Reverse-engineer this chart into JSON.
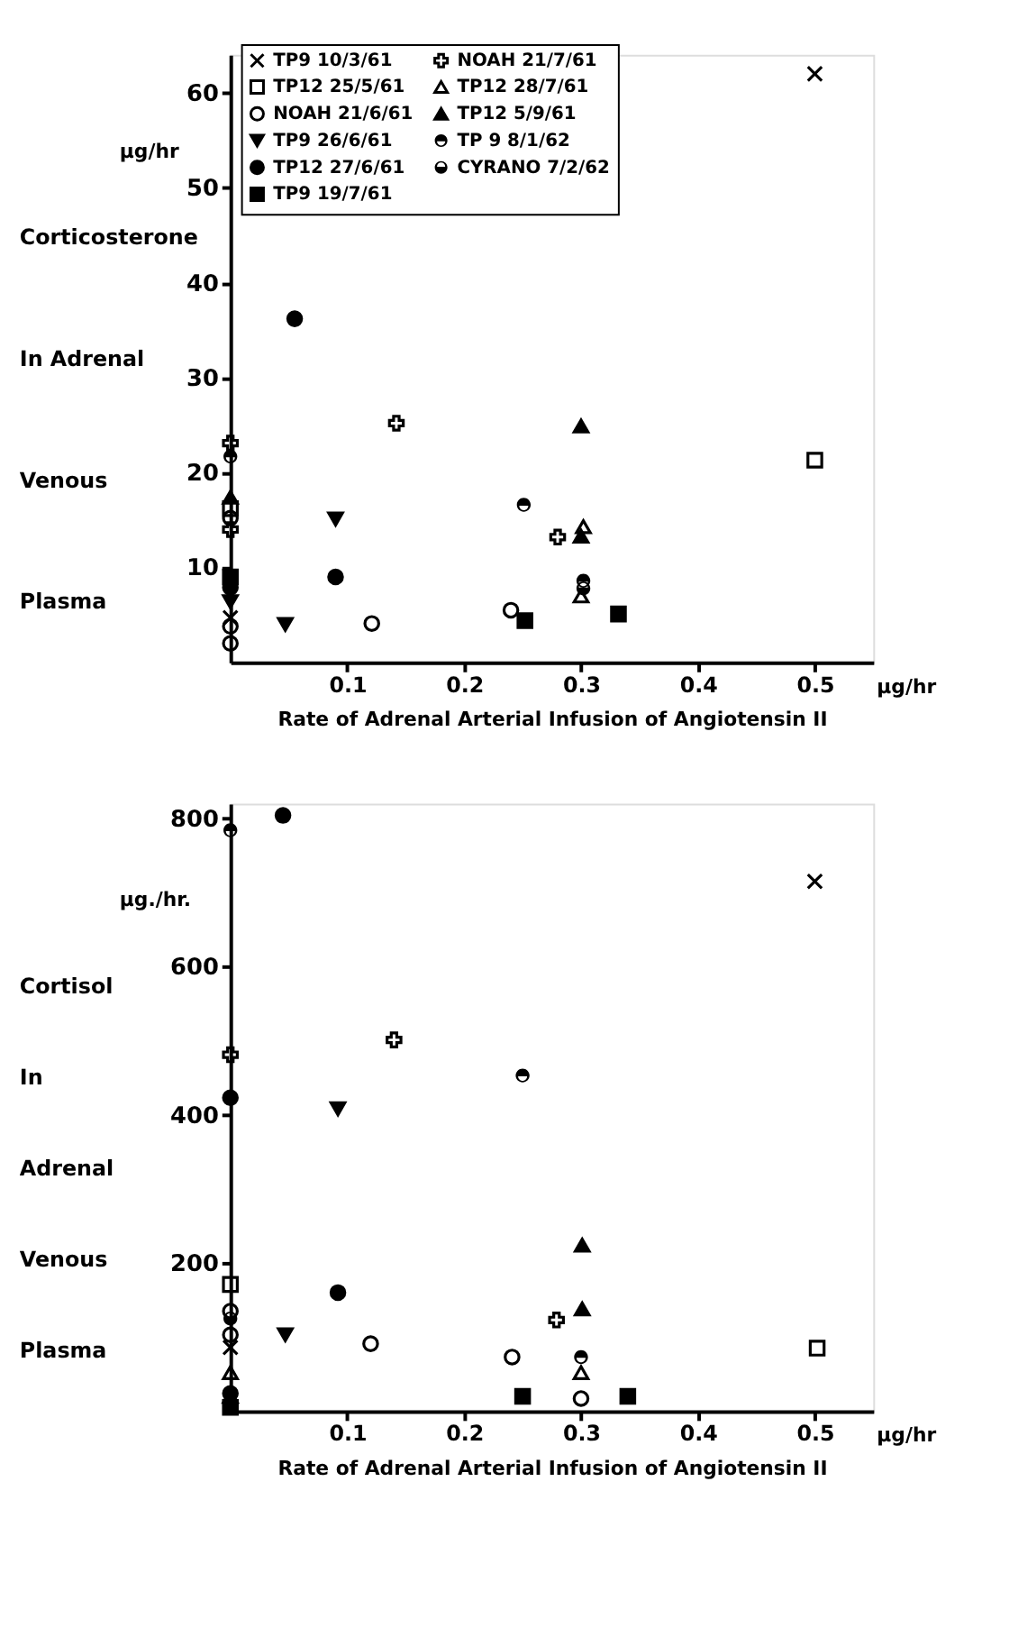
{
  "chart_data": [
    {
      "type": "scatter",
      "xlabel": "Rate of Adrenal Arterial Infusion of Angiotensin II",
      "ylabel": "Corticosterone\nIn Adrenal\nVenous\nPlasma",
      "annotations": [
        "µg/hr",
        "µg/hr"
      ],
      "xlim": [
        0,
        0.55
      ],
      "ylim": [
        0,
        64
      ],
      "xticks": [
        0.1,
        0.2,
        0.3,
        0.4,
        0.5
      ],
      "yticks": [
        10,
        20,
        30,
        40,
        50,
        60
      ],
      "legend": "top left",
      "series": [
        {
          "name": "TP9 10/3/61",
          "color": "#000000",
          "marker": "cross",
          "x": [
            0.5,
            0
          ],
          "values": [
            62,
            4.7
          ]
        },
        {
          "name": "TP12 25/5/61",
          "color": "#000000",
          "marker": "square-open",
          "x": [
            0.5,
            0
          ],
          "values": [
            21.3,
            16.2
          ]
        },
        {
          "name": "NOAH 21/6/61",
          "color": "#000000",
          "marker": "circle-open",
          "x": [
            0.121,
            0.24,
            0,
            0,
            0
          ],
          "values": [
            4.1,
            5.5,
            15.2,
            3.8,
            2.0
          ]
        },
        {
          "name": "TP9 26/6/61",
          "color": "#000000",
          "marker": "triangle-down",
          "x": [
            0.09,
            0.047,
            0
          ],
          "values": [
            15.1,
            4.0,
            6.4
          ]
        },
        {
          "name": "TP12 27/6/61",
          "color": "#000000",
          "marker": "circle",
          "x": [
            0.055,
            0.09,
            0
          ],
          "values": [
            36.2,
            9.0,
            7.9
          ]
        },
        {
          "name": "TP9 19/7/61",
          "color": "#000000",
          "marker": "square",
          "x": [
            0.252,
            0.332,
            0
          ],
          "values": [
            4.4,
            5.1,
            9.0
          ]
        },
        {
          "name": "NOAH 21/7/61",
          "color": "#000000",
          "marker": "plus",
          "x": [
            0.142,
            0.28,
            0,
            0
          ],
          "values": [
            25.2,
            13.2,
            23.1,
            14.0
          ]
        },
        {
          "name": "TP12 28/7/61",
          "color": "#000000",
          "marker": "triangle-open",
          "x": [
            0.302,
            0.3
          ],
          "values": [
            14.3,
            7.0
          ]
        },
        {
          "name": "TP12 5/9/61",
          "color": "#000000",
          "marker": "triangle",
          "x": [
            0.3,
            0.3,
            0
          ],
          "values": [
            24.9,
            13.3,
            17.4
          ]
        },
        {
          "name": "TP 9 8/1/62",
          "color": "#000000",
          "marker": "circle-half-top",
          "x": [
            0.251,
            0.302,
            0
          ],
          "values": [
            16.6,
            8.6,
            21.7
          ]
        },
        {
          "name": "CYRANO 7/2/62",
          "color": "#000000",
          "marker": "circle-half-bottom",
          "x": [
            0.302
          ],
          "values": [
            7.8
          ]
        }
      ]
    },
    {
      "type": "scatter",
      "xlabel": "Rate of Adrenal Arterial Infusion of Angiotensin II",
      "ylabel": "Cortisol\nIn\nAdrenal\nVenous\nPlasma",
      "annotations": [
        "µg./hr.",
        "µg/hr"
      ],
      "xlim": [
        0,
        0.55
      ],
      "ylim": [
        0,
        820
      ],
      "xticks": [
        0.1,
        0.2,
        0.3,
        0.4,
        0.5
      ],
      "yticks": [
        200,
        400,
        600,
        800
      ],
      "series": [
        {
          "color": "#000000",
          "marker": "cross",
          "x": [
            0.5,
            0
          ],
          "values": [
            715,
            86
          ]
        },
        {
          "color": "#000000",
          "marker": "square-open",
          "x": [
            0.502,
            0
          ],
          "values": [
            85,
            171
          ]
        },
        {
          "color": "#000000",
          "marker": "circle-open",
          "x": [
            0.12,
            0.241,
            0,
            0,
            0.3
          ],
          "values": [
            91,
            73,
            135,
            103,
            17
          ]
        },
        {
          "color": "#000000",
          "marker": "triangle-down",
          "x": [
            0.092,
            0.047
          ],
          "values": [
            408,
            103
          ]
        },
        {
          "color": "#000000",
          "marker": "circle",
          "x": [
            0.045,
            0.092,
            0,
            0
          ],
          "values": [
            804,
            160,
            423,
            24
          ]
        },
        {
          "color": "#000000",
          "marker": "square",
          "x": [
            0.25,
            0.34,
            0
          ],
          "values": [
            20,
            20,
            5
          ]
        },
        {
          "color": "#000000",
          "marker": "plus",
          "x": [
            0.14,
            0.279,
            0
          ],
          "values": [
            501,
            123,
            481
          ]
        },
        {
          "color": "#000000",
          "marker": "triangle-open",
          "x": [
            0.3,
            0
          ],
          "values": [
            52,
            52
          ]
        },
        {
          "color": "#000000",
          "marker": "triangle",
          "x": [
            0.301,
            0.301,
            0
          ],
          "values": [
            224,
            138,
            20
          ]
        },
        {
          "color": "#000000",
          "marker": "circle-half-top",
          "x": [
            0.25,
            0.3,
            0
          ],
          "values": [
            453,
            73,
            784
          ]
        },
        {
          "color": "#000000",
          "marker": "circle-half-bottom",
          "x": [
            0
          ],
          "values": [
            125
          ]
        }
      ]
    }
  ]
}
